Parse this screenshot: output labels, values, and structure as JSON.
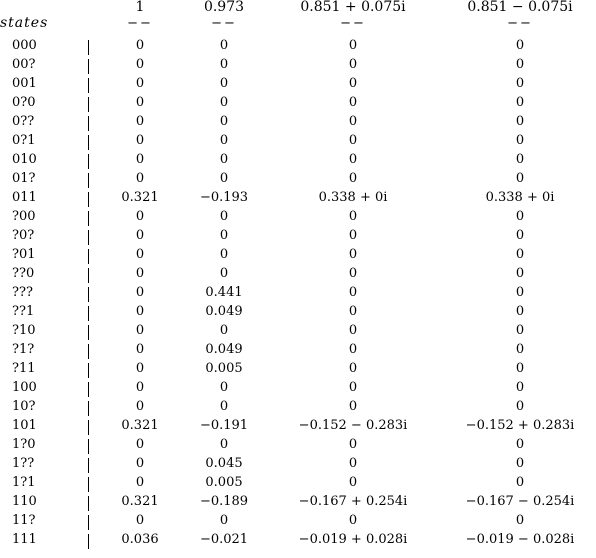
{
  "headers": [
    "1",
    "0.973",
    "0.851 + 0.075i",
    "0.851 − 0.075i"
  ],
  "states_label": "states",
  "separator": "−−",
  "rows": [
    {
      "state": "000",
      "values": [
        "0",
        "0",
        "0",
        "0"
      ]
    },
    {
      "state": "00?",
      "values": [
        "0",
        "0",
        "0",
        "0"
      ]
    },
    {
      "state": "001",
      "values": [
        "0",
        "0",
        "0",
        "0"
      ]
    },
    {
      "state": "0?0",
      "values": [
        "0",
        "0",
        "0",
        "0"
      ]
    },
    {
      "state": "0??",
      "values": [
        "0",
        "0",
        "0",
        "0"
      ]
    },
    {
      "state": "0?1",
      "values": [
        "0",
        "0",
        "0",
        "0"
      ]
    },
    {
      "state": "010",
      "values": [
        "0",
        "0",
        "0",
        "0"
      ]
    },
    {
      "state": "01?",
      "values": [
        "0",
        "0",
        "0",
        "0"
      ]
    },
    {
      "state": "011",
      "values": [
        "0.321",
        "−0.193",
        "0.338 + 0i",
        "0.338 + 0i"
      ]
    },
    {
      "state": "?00",
      "values": [
        "0",
        "0",
        "0",
        "0"
      ]
    },
    {
      "state": "?0?",
      "values": [
        "0",
        "0",
        "0",
        "0"
      ]
    },
    {
      "state": "?01",
      "values": [
        "0",
        "0",
        "0",
        "0"
      ]
    },
    {
      "state": "??0",
      "values": [
        "0",
        "0",
        "0",
        "0"
      ]
    },
    {
      "state": "???",
      "values": [
        "0",
        "0.441",
        "0",
        "0"
      ]
    },
    {
      "state": "??1",
      "values": [
        "0",
        "0.049",
        "0",
        "0"
      ]
    },
    {
      "state": "?10",
      "values": [
        "0",
        "0",
        "0",
        "0"
      ]
    },
    {
      "state": "?1?",
      "values": [
        "0",
        "0.049",
        "0",
        "0"
      ]
    },
    {
      "state": "?11",
      "values": [
        "0",
        "0.005",
        "0",
        "0"
      ]
    },
    {
      "state": "100",
      "values": [
        "0",
        "0",
        "0",
        "0"
      ]
    },
    {
      "state": "10?",
      "values": [
        "0",
        "0",
        "0",
        "0"
      ]
    },
    {
      "state": "101",
      "values": [
        "0.321",
        "−0.191",
        "−0.152 − 0.283i",
        "−0.152 + 0.283i"
      ]
    },
    {
      "state": "1?0",
      "values": [
        "0",
        "0",
        "0",
        "0"
      ]
    },
    {
      "state": "1??",
      "values": [
        "0",
        "0.045",
        "0",
        "0"
      ]
    },
    {
      "state": "1?1",
      "values": [
        "0",
        "0.005",
        "0",
        "0"
      ]
    },
    {
      "state": "110",
      "values": [
        "0.321",
        "−0.189",
        "−0.167 + 0.254i",
        "−0.167 − 0.254i"
      ]
    },
    {
      "state": "11?",
      "values": [
        "0",
        "0",
        "0",
        "0"
      ]
    },
    {
      "state": "111",
      "values": [
        "0.036",
        "−0.021",
        "−0.019 + 0.028i",
        "−0.019 − 0.028i"
      ]
    }
  ]
}
